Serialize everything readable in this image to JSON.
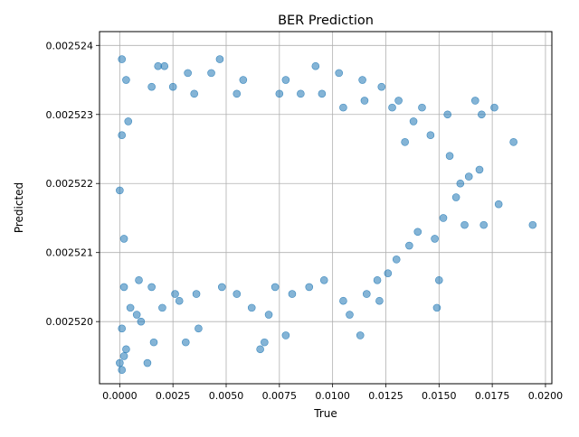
{
  "chart_data": {
    "type": "scatter",
    "title": "BER Prediction",
    "xlabel": "True",
    "ylabel": "Predicted",
    "xlim": [
      -0.00095,
      0.0203
    ],
    "ylim": [
      0.0025191,
      0.0025242
    ],
    "x_ticks": [
      0.0,
      0.0025,
      0.005,
      0.0075,
      0.01,
      0.0125,
      0.015,
      0.0175,
      0.02
    ],
    "x_tick_labels": [
      "0.0000",
      "0.0025",
      "0.0050",
      "0.0075",
      "0.0100",
      "0.0125",
      "0.0150",
      "0.0175",
      "0.0200"
    ],
    "y_ticks": [
      0.00252,
      0.002521,
      0.002522,
      0.002523,
      0.002524
    ],
    "y_tick_labels": [
      "0.002520",
      "0.002521",
      "0.002522",
      "0.002523",
      "0.002524"
    ],
    "grid": true,
    "marker_color": "#1f77b4",
    "marker_alpha": 0.55,
    "series": [
      {
        "points": [
          [
            0.0,
            0.0025219
          ],
          [
            0.0001,
            0.0025227
          ],
          [
            0.0002,
            0.0025212
          ],
          [
            0.0003,
            0.0025235
          ],
          [
            0.0002,
            0.0025205
          ],
          [
            0.0001,
            0.0025199
          ],
          [
            0.0,
            0.0025194
          ],
          [
            0.0001,
            0.0025238
          ],
          [
            0.0004,
            0.0025229
          ],
          [
            0.0005,
            0.0025202
          ],
          [
            0.0003,
            0.0025196
          ],
          [
            0.0001,
            0.0025193
          ],
          [
            0.0002,
            0.0025195
          ],
          [
            0.0008,
            0.0025201
          ],
          [
            0.001,
            0.00252
          ],
          [
            0.0013,
            0.0025194
          ],
          [
            0.0016,
            0.0025197
          ],
          [
            0.002,
            0.0025202
          ],
          [
            0.0021,
            0.0025237
          ],
          [
            0.0018,
            0.0025237
          ],
          [
            0.0028,
            0.0025203
          ],
          [
            0.0031,
            0.0025197
          ],
          [
            0.0037,
            0.0025199
          ],
          [
            0.0032,
            0.0025236
          ],
          [
            0.0047,
            0.0025238
          ],
          [
            0.0043,
            0.0025236
          ],
          [
            0.0058,
            0.0025235
          ],
          [
            0.0062,
            0.0025202
          ],
          [
            0.0066,
            0.0025196
          ],
          [
            0.0068,
            0.0025197
          ],
          [
            0.007,
            0.0025201
          ],
          [
            0.0078,
            0.0025198
          ],
          [
            0.0078,
            0.0025235
          ],
          [
            0.0092,
            0.0025237
          ],
          [
            0.0103,
            0.0025236
          ],
          [
            0.0108,
            0.0025201
          ],
          [
            0.0113,
            0.0025198
          ],
          [
            0.0114,
            0.0025235
          ],
          [
            0.0123,
            0.0025234
          ],
          [
            0.0131,
            0.0025232
          ],
          [
            0.0122,
            0.0025203
          ],
          [
            0.015,
            0.0025206
          ],
          [
            0.0149,
            0.0025202
          ],
          [
            0.0142,
            0.0025231
          ],
          [
            0.0154,
            0.002523
          ],
          [
            0.0167,
            0.0025232
          ],
          [
            0.0176,
            0.0025231
          ],
          [
            0.017,
            0.002523
          ],
          [
            0.0185,
            0.0025226
          ],
          [
            0.0194,
            0.0025214
          ],
          [
            0.0178,
            0.0025217
          ],
          [
            0.0169,
            0.0025222
          ],
          [
            0.0171,
            0.0025214
          ],
          [
            0.0162,
            0.0025214
          ],
          [
            0.0164,
            0.0025221
          ],
          [
            0.0158,
            0.0025218
          ],
          [
            0.016,
            0.002522
          ],
          [
            0.0155,
            0.0025224
          ],
          [
            0.0148,
            0.0025212
          ],
          [
            0.0152,
            0.0025215
          ],
          [
            0.0146,
            0.0025227
          ],
          [
            0.014,
            0.0025213
          ],
          [
            0.0138,
            0.0025229
          ],
          [
            0.0136,
            0.0025211
          ],
          [
            0.0134,
            0.0025226
          ],
          [
            0.013,
            0.0025209
          ],
          [
            0.0126,
            0.0025207
          ],
          [
            0.0121,
            0.0025206
          ],
          [
            0.0116,
            0.0025204
          ],
          [
            0.0105,
            0.0025203
          ],
          [
            0.0096,
            0.0025206
          ],
          [
            0.0089,
            0.0025205
          ],
          [
            0.0081,
            0.0025204
          ],
          [
            0.0073,
            0.0025205
          ],
          [
            0.0055,
            0.0025204
          ],
          [
            0.0048,
            0.0025205
          ],
          [
            0.0036,
            0.0025204
          ],
          [
            0.0026,
            0.0025204
          ],
          [
            0.0015,
            0.0025205
          ],
          [
            0.0009,
            0.0025206
          ],
          [
            0.0035,
            0.0025233
          ],
          [
            0.0055,
            0.0025233
          ],
          [
            0.0075,
            0.0025233
          ],
          [
            0.0095,
            0.0025233
          ],
          [
            0.0115,
            0.0025232
          ],
          [
            0.0128,
            0.0025231
          ],
          [
            0.0015,
            0.0025234
          ],
          [
            0.0025,
            0.0025234
          ],
          [
            0.0105,
            0.0025231
          ],
          [
            0.0085,
            0.0025233
          ]
        ]
      }
    ]
  }
}
